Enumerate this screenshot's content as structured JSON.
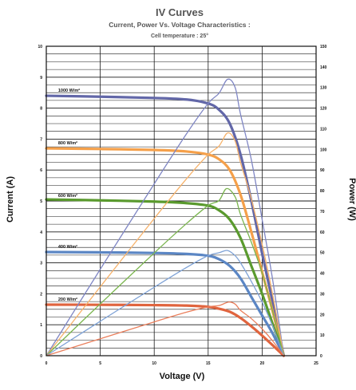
{
  "chart_data": {
    "type": "line",
    "title": "IV Curves",
    "subtitle": "Current, Power Vs. Voltage Characteristics :",
    "subtitle2": "Cell temperature :  25°",
    "xlabel": "Voltage (V)",
    "ylabel": "Current (A)",
    "ylabel_right": "Power (W)",
    "xlim": [
      0,
      25
    ],
    "ylim": [
      0,
      10
    ],
    "ylim_right": [
      0,
      150
    ],
    "xticks": [
      "0",
      "5",
      "10",
      "15",
      "20",
      "25"
    ],
    "yticks": [
      "0",
      "1",
      "2",
      "3",
      "4",
      "5",
      "6",
      "7",
      "8",
      "9",
      "10"
    ],
    "yticks_right": [
      "0",
      "10",
      "20",
      "30",
      "40",
      "50",
      "60",
      "70",
      "80",
      "90",
      "100",
      "110",
      "120",
      "130",
      "140",
      "150"
    ],
    "grid": true,
    "series": [
      {
        "name": "1000 W/m²",
        "color": "#6267a8",
        "power_color": "#7f86c4",
        "isc": 8.4,
        "voc": 22.0,
        "vmp": 16.8,
        "pmax": 134,
        "iv": [
          [
            0,
            8.4
          ],
          [
            5,
            8.37
          ],
          [
            10,
            8.33
          ],
          [
            13,
            8.28
          ],
          [
            15,
            8.15
          ],
          [
            16,
            7.95
          ],
          [
            17,
            7.5
          ],
          [
            18,
            6.5
          ],
          [
            19,
            5.0
          ],
          [
            20,
            3.3
          ],
          [
            21,
            1.7
          ],
          [
            22,
            0
          ]
        ],
        "pv": [
          [
            0,
            0
          ],
          [
            5,
            41.9
          ],
          [
            10,
            83.3
          ],
          [
            13,
            107.6
          ],
          [
            15,
            122.3
          ],
          [
            16,
            127.2
          ],
          [
            16.8,
            134
          ],
          [
            17.5,
            130
          ],
          [
            18,
            117
          ],
          [
            19,
            95
          ],
          [
            20,
            66
          ],
          [
            21,
            36
          ],
          [
            22,
            0
          ]
        ]
      },
      {
        "name": "800 W/m²",
        "color": "#f5a04a",
        "power_color": "#f7b26a",
        "isc": 6.7,
        "voc": 22.0,
        "vmp": 16.8,
        "pmax": 108,
        "iv": [
          [
            0,
            6.7
          ],
          [
            5,
            6.68
          ],
          [
            10,
            6.65
          ],
          [
            13,
            6.6
          ],
          [
            15,
            6.5
          ],
          [
            16,
            6.35
          ],
          [
            17,
            6.0
          ],
          [
            18,
            5.2
          ],
          [
            19,
            4.0
          ],
          [
            20,
            2.7
          ],
          [
            21,
            1.4
          ],
          [
            22,
            0
          ]
        ],
        "pv": [
          [
            0,
            0
          ],
          [
            5,
            33.4
          ],
          [
            10,
            66.5
          ],
          [
            13,
            85.8
          ],
          [
            15,
            97.5
          ],
          [
            16,
            101.6
          ],
          [
            16.8,
            108
          ],
          [
            17.5,
            104
          ],
          [
            18,
            93.6
          ],
          [
            19,
            76
          ],
          [
            20,
            54
          ],
          [
            21,
            29
          ],
          [
            22,
            0
          ]
        ]
      },
      {
        "name": "600 W/m²",
        "color": "#5a9a2e",
        "power_color": "#7ab54e",
        "isc": 5.0,
        "voc": 22.0,
        "vmp": 16.7,
        "pmax": 81,
        "iv": [
          [
            0,
            5.05
          ],
          [
            5,
            5.02
          ],
          [
            10,
            4.98
          ],
          [
            13,
            4.93
          ],
          [
            15,
            4.85
          ],
          [
            16,
            4.7
          ],
          [
            17,
            4.4
          ],
          [
            18,
            3.8
          ],
          [
            19,
            2.9
          ],
          [
            20,
            2.0
          ],
          [
            21,
            1.0
          ],
          [
            22,
            0
          ]
        ],
        "pv": [
          [
            0,
            0
          ],
          [
            5,
            25.1
          ],
          [
            10,
            49.8
          ],
          [
            13,
            64.1
          ],
          [
            15,
            72.8
          ],
          [
            16,
            75.2
          ],
          [
            16.7,
            81
          ],
          [
            17.5,
            77
          ],
          [
            18,
            68.4
          ],
          [
            19,
            55
          ],
          [
            20,
            40
          ],
          [
            21,
            21
          ],
          [
            22,
            0
          ]
        ]
      },
      {
        "name": "400 W/m²",
        "color": "#5b86c4",
        "power_color": "#7ea2d6",
        "isc": 3.35,
        "voc": 22.0,
        "vmp": 16.8,
        "pmax": 51,
        "iv": [
          [
            0,
            3.35
          ],
          [
            5,
            3.34
          ],
          [
            10,
            3.32
          ],
          [
            13,
            3.29
          ],
          [
            15,
            3.23
          ],
          [
            16,
            3.12
          ],
          [
            17,
            2.9
          ],
          [
            18,
            2.5
          ],
          [
            19,
            1.9
          ],
          [
            20,
            1.3
          ],
          [
            21,
            0.7
          ],
          [
            22,
            0
          ]
        ],
        "pv": [
          [
            0,
            0
          ],
          [
            5,
            16.7
          ],
          [
            10,
            33.2
          ],
          [
            13,
            42.8
          ],
          [
            15,
            48.5
          ],
          [
            16,
            49.9
          ],
          [
            16.8,
            51
          ],
          [
            17.5,
            48.5
          ],
          [
            18,
            45
          ],
          [
            19,
            36
          ],
          [
            20,
            26
          ],
          [
            21,
            14
          ],
          [
            22,
            0
          ]
        ]
      },
      {
        "name": "200 W/m²",
        "color": "#e0643e",
        "power_color": "#ea7f5c",
        "isc": 1.65,
        "voc": 22.0,
        "vmp": 16.9,
        "pmax": 26,
        "iv": [
          [
            0,
            1.65
          ],
          [
            5,
            1.645
          ],
          [
            10,
            1.635
          ],
          [
            13,
            1.62
          ],
          [
            15,
            1.58
          ],
          [
            16,
            1.52
          ],
          [
            17,
            1.42
          ],
          [
            18,
            1.22
          ],
          [
            19,
            0.95
          ],
          [
            20,
            0.65
          ],
          [
            21,
            0.33
          ],
          [
            22,
            0
          ]
        ],
        "pv": [
          [
            0,
            0
          ],
          [
            5,
            8.2
          ],
          [
            10,
            16.4
          ],
          [
            13,
            21.1
          ],
          [
            15,
            23.7
          ],
          [
            16,
            24.3
          ],
          [
            16.9,
            26
          ],
          [
            17.5,
            25
          ],
          [
            18,
            22
          ],
          [
            19,
            18
          ],
          [
            20,
            13
          ],
          [
            21,
            7
          ],
          [
            22,
            0
          ]
        ]
      }
    ]
  }
}
